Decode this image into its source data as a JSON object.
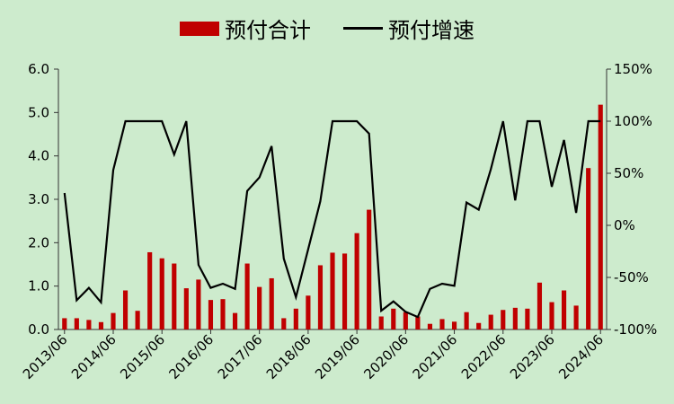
{
  "chart_data": {
    "type": "bar+line",
    "legend": {
      "bar_label": "预付合计",
      "line_label": "预付增速",
      "position": "top-center"
    },
    "colors": {
      "bar": "#c00000",
      "line": "#000000",
      "background": "#cdebcd"
    },
    "x_tick_labels": [
      "2013/06",
      "2014/06",
      "2015/06",
      "2016/06",
      "2017/06",
      "2018/06",
      "2019/06",
      "2020/06",
      "2021/06",
      "2022/06",
      "2023/06",
      "2024/06"
    ],
    "y_left": {
      "ylim": [
        0,
        6
      ],
      "ticks": [
        "0.0",
        "1.0",
        "2.0",
        "3.0",
        "4.0",
        "5.0",
        "6.0"
      ]
    },
    "y_right": {
      "ylim": [
        -100,
        150
      ],
      "ticks": [
        "-100%",
        "-50%",
        "0%",
        "50%",
        "100%",
        "150%"
      ]
    },
    "series": [
      {
        "name": "预付合计",
        "axis": "left",
        "values": [
          0.26,
          0.26,
          0.22,
          0.17,
          0.38,
          0.9,
          0.43,
          1.78,
          1.64,
          1.52,
          0.95,
          1.15,
          0.68,
          0.7,
          0.38,
          1.52,
          0.98,
          1.18,
          0.26,
          0.48,
          0.78,
          1.48,
          1.77,
          1.75,
          2.22,
          2.76,
          0.3,
          0.48,
          0.4,
          0.3,
          0.13,
          0.24,
          0.18,
          0.4,
          0.15,
          0.34,
          0.45,
          0.5,
          0.48,
          1.08,
          0.63,
          0.9,
          0.55,
          3.72,
          5.18
        ]
      },
      {
        "name": "预付增速",
        "axis": "right",
        "values": [
          31,
          -72,
          -60,
          -74,
          53,
          100,
          100,
          100,
          100,
          68,
          100,
          -38,
          -60,
          -56,
          -61,
          33,
          46,
          76,
          -32,
          -69,
          -23,
          23,
          100,
          100,
          100,
          88,
          -82,
          -73,
          -83,
          -88,
          -61,
          -56,
          -58,
          22,
          15,
          54,
          100,
          24,
          100,
          100,
          37,
          82,
          12,
          100,
          100
        ]
      }
    ]
  }
}
